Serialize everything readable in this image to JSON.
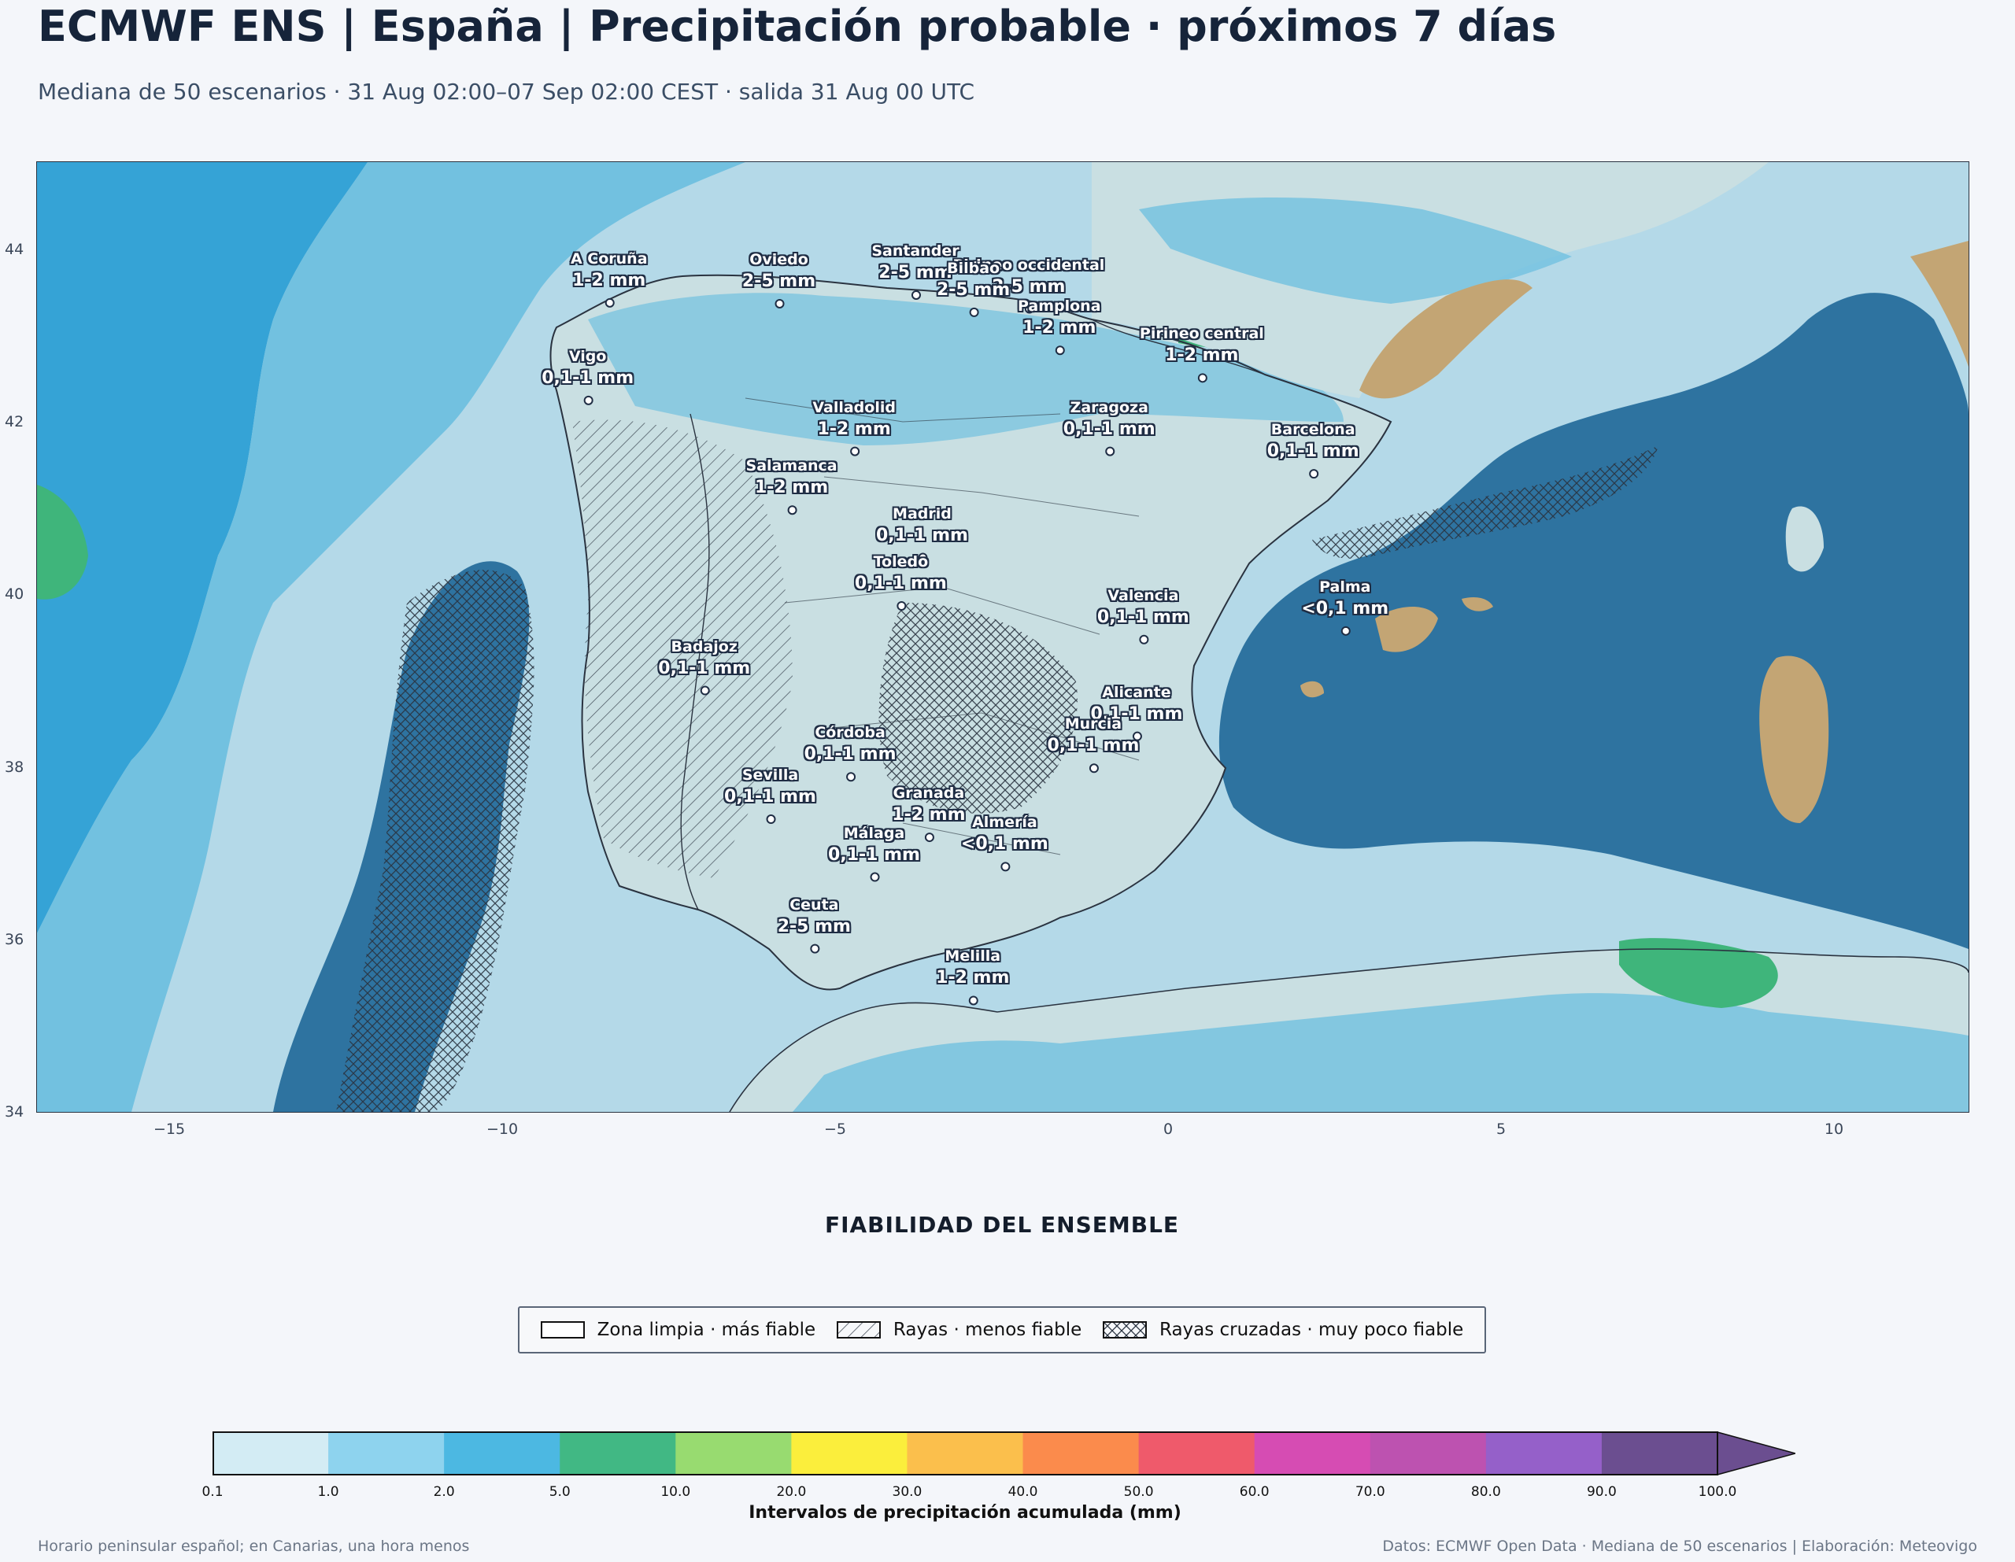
{
  "header": {
    "title": "ECMWF ENS | España | Precipitación probable · próximos 7 días",
    "subtitle": "Mediana de 50 escenarios · 31 Aug 02:00–07 Sep 02:00 CEST · salida 31 Aug 00 UTC"
  },
  "map": {
    "lon_range": [
      -17,
      12
    ],
    "lat_range": [
      34,
      45
    ],
    "x_ticks": [
      "−15",
      "−10",
      "−5",
      "0",
      "5",
      "10"
    ],
    "y_ticks": [
      "44",
      "42",
      "40",
      "38",
      "36",
      "34"
    ],
    "colors": {
      "sea_deep": "#2e73a0",
      "land": "#c9dfe2",
      "rain_light": "#b4d9e8",
      "rain_mid": "#72c1e0",
      "rain_heavy": "#35a3d6",
      "rain_green": "#3fb57b",
      "terrain": "#c3a574"
    },
    "cities": [
      {
        "name": "A Coruña",
        "value": "1-2 mm",
        "lon": -8.4,
        "lat": 43.37
      },
      {
        "name": "Oviedo",
        "value": "2-5 mm",
        "lon": -5.85,
        "lat": 43.36
      },
      {
        "name": "Santander",
        "value": "2-5 mm",
        "lon": -3.8,
        "lat": 43.46
      },
      {
        "name": "Pirineo occidental",
        "value": "2-5 mm",
        "lon": -2.1,
        "lat": 43.3
      },
      {
        "name": "Pamplona",
        "value": "1-2 mm",
        "lon": -1.64,
        "lat": 42.82
      },
      {
        "name": "Pirineo central",
        "value": "1-2 mm",
        "lon": 0.5,
        "lat": 42.5
      },
      {
        "name": "Bilbao",
        "value": "2-5 mm",
        "lon": -2.93,
        "lat": 43.26
      },
      {
        "name": "Vigo",
        "value": "0,1-1 mm",
        "lon": -8.72,
        "lat": 42.24
      },
      {
        "name": "Valladolid",
        "value": "1-2 mm",
        "lon": -4.72,
        "lat": 41.65
      },
      {
        "name": "Zaragoza",
        "value": "0,1-1 mm",
        "lon": -0.89,
        "lat": 41.65
      },
      {
        "name": "Barcelona",
        "value": "0,1-1 mm",
        "lon": 2.17,
        "lat": 41.39
      },
      {
        "name": "Salamanca",
        "value": "1-2 mm",
        "lon": -5.66,
        "lat": 40.97
      },
      {
        "name": "Madrid",
        "value": "0,1-1 mm",
        "lon": -3.7,
        "lat": 40.42
      },
      {
        "name": "Valencia",
        "value": "0,1-1 mm",
        "lon": -0.38,
        "lat": 39.47
      },
      {
        "name": "Palma",
        "value": "<0,1 mm",
        "lon": 2.65,
        "lat": 39.57
      },
      {
        "name": "Badajoz",
        "value": "0,1-1 mm",
        "lon": -6.97,
        "lat": 38.88
      },
      {
        "name": "Toledo",
        "value": "0,1-1 mm",
        "lon": -4.02,
        "lat": 39.86
      },
      {
        "name": "Córdoba",
        "value": "0,1-1 mm",
        "lon": -4.78,
        "lat": 37.88
      },
      {
        "name": "Alicante",
        "value": "0,1-1 mm",
        "lon": -0.48,
        "lat": 38.35
      },
      {
        "name": "Murcia",
        "value": "0,1-1 mm",
        "lon": -1.13,
        "lat": 37.98
      },
      {
        "name": "Granada",
        "value": "1-2 mm",
        "lon": -3.6,
        "lat": 37.18
      },
      {
        "name": "Sevilla",
        "value": "0,1-1 mm",
        "lon": -5.98,
        "lat": 37.39
      },
      {
        "name": "Almería",
        "value": "<0,1 mm",
        "lon": -2.46,
        "lat": 36.84
      },
      {
        "name": "Málaga",
        "value": "0,1-1 mm",
        "lon": -4.42,
        "lat": 36.72
      },
      {
        "name": "Ceuta",
        "value": "2-5 mm",
        "lon": -5.32,
        "lat": 35.89
      },
      {
        "name": "Melilla",
        "value": "1-2 mm",
        "lon": -2.94,
        "lat": 35.29
      }
    ]
  },
  "reliability": {
    "title": "FIABILIDAD DEL ENSEMBLE",
    "items": [
      {
        "label": "Zona limpia · más fiable"
      },
      {
        "label": "Rayas · menos fiable"
      },
      {
        "label": "Rayas cruzadas · muy poco fiable"
      }
    ]
  },
  "colorbar": {
    "label": "Intervalos de precipitación acumulada (mm)",
    "ticks": [
      "0.1",
      "1.0",
      "2.0",
      "5.0",
      "10.0",
      "20.0",
      "30.0",
      "40.0",
      "50.0",
      "60.0",
      "70.0",
      "80.0",
      "90.0",
      "100.0"
    ],
    "colors": [
      "#d3ecf4",
      "#8ed3ee",
      "#4cb8e2",
      "#41b884",
      "#98db70",
      "#fbee3c",
      "#fbbf4c",
      "#fb8b4c",
      "#ef5a6b",
      "#d64cb3",
      "#bd52b0",
      "#9560c9",
      "#6b4e90"
    ],
    "extend_color": "#6b4e90"
  },
  "footer": {
    "left": "Horario peninsular español; en Canarias, una hora menos",
    "right": "Datos: ECMWF Open Data · Mediana de 50 escenarios | Elaboración: Meteovigo"
  }
}
